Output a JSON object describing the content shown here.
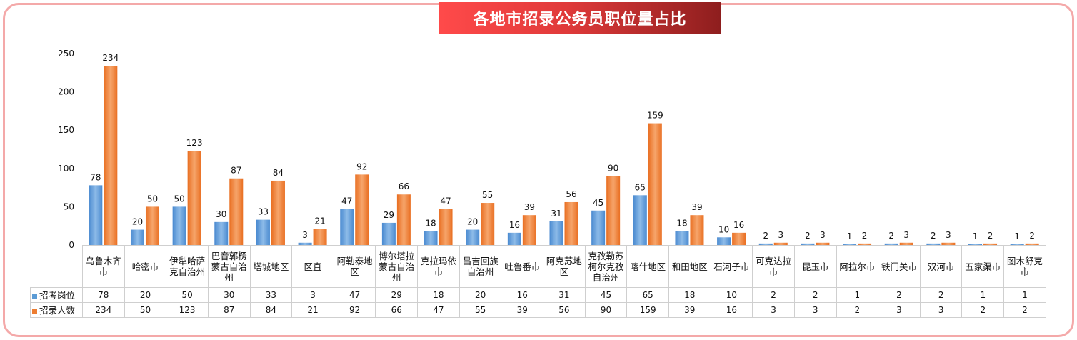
{
  "title": "各地市招录公务员职位量占比",
  "colors": {
    "series1": "#5b9bd5",
    "series2": "#ed7d31",
    "frame": "#f4a9a9",
    "banner": "#e83a3a"
  },
  "chart_data": {
    "type": "bar",
    "title": "各地市招录公务员职位量占比",
    "categories": [
      "乌鲁木齐市",
      "哈密市",
      "伊犁哈萨克自治州",
      "巴音郭楞蒙古自治州",
      "塔城地区",
      "区直",
      "阿勒泰地区",
      "博尔塔拉蒙古自治州",
      "克拉玛依市",
      "昌吉回族自治州",
      "吐鲁番市",
      "阿克苏地区",
      "克孜勒苏柯尔克孜自治州",
      "喀什地区",
      "和田地区",
      "石河子市",
      "可克达拉市",
      "昆玉市",
      "阿拉尔市",
      "铁门关市",
      "双河市",
      "五家渠市",
      "图木舒克市"
    ],
    "series": [
      {
        "name": "招考岗位",
        "values": [
          78,
          20,
          50,
          30,
          33,
          3,
          47,
          29,
          18,
          20,
          16,
          31,
          45,
          65,
          18,
          10,
          2,
          2,
          1,
          2,
          2,
          1,
          1
        ]
      },
      {
        "name": "招录人数",
        "values": [
          234,
          50,
          123,
          87,
          84,
          21,
          92,
          66,
          47,
          55,
          39,
          56,
          90,
          159,
          39,
          16,
          3,
          3,
          2,
          3,
          3,
          2,
          2
        ]
      }
    ],
    "ylim": [
      0,
      250
    ],
    "yticks": [
      0,
      50,
      100,
      150,
      200,
      250
    ],
    "grid": false,
    "data_table": true
  }
}
